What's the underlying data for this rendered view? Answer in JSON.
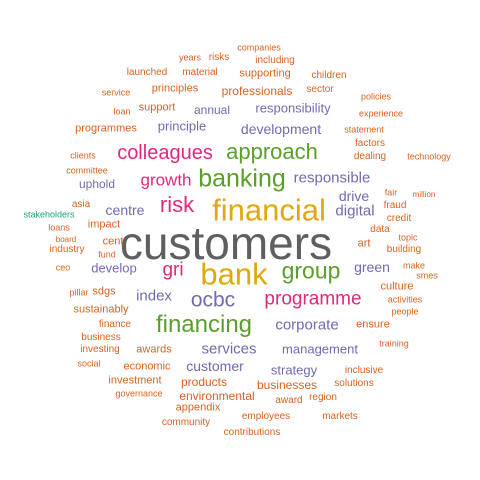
{
  "palette": {
    "gray": "#5f5f5f",
    "orange": "#d9621f",
    "gold": "#e0a80f",
    "green": "#5a9f2b",
    "magenta": "#e0297d",
    "purple": "#6f6bb1",
    "teal": "#1a9e79"
  },
  "words": [
    "customers",
    "financial",
    "bank",
    "banking",
    "approach",
    "colleagues",
    "group",
    "financing",
    "ocbc",
    "programme",
    "risk",
    "growth",
    "gri",
    "responsible",
    "development",
    "responsibility",
    "digital",
    "corporate",
    "services",
    "management",
    "customer",
    "index",
    "centre",
    "principle",
    "drive",
    "green",
    "develop",
    "strategy",
    "professionals",
    "supporting",
    "annual",
    "uphold",
    "products",
    "businesses",
    "environmental",
    "appendix",
    "awards",
    "investment",
    "economic",
    "employees",
    "companies",
    "years",
    "risks",
    "including",
    "launched",
    "material",
    "children",
    "service",
    "principles",
    "sector",
    "policies",
    "loan",
    "support",
    "experience",
    "programmes",
    "statement",
    "factors",
    "clients",
    "dealing",
    "technology",
    "committee",
    "fair",
    "million",
    "asia",
    "fraud",
    "stakeholders",
    "loans",
    "impact",
    "credit",
    "board",
    "cent",
    "data",
    "topic",
    "industry",
    "fund",
    "art",
    "building",
    "ceo",
    "make",
    "smes",
    "culture",
    "pillar",
    "sdgs",
    "activities",
    "sustainably",
    "people",
    "ensure",
    "finance",
    "business",
    "training",
    "investing",
    "social",
    "inclusive",
    "solutions",
    "governance",
    "award",
    "region",
    "community",
    "markets",
    "contributions"
  ]
}
